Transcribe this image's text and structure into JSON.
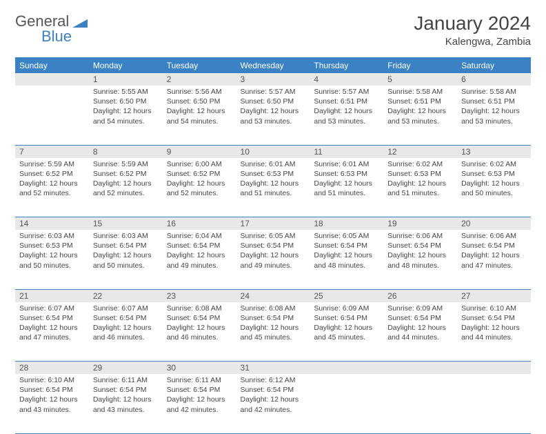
{
  "logo": {
    "word1": "General",
    "word2": "Blue",
    "shape_color": "#3b82c4"
  },
  "title": "January 2024",
  "location": "Kalengwa, Zambia",
  "colors": {
    "header_bg": "#3b82c4",
    "header_text": "#ffffff",
    "daynum_bg": "#e8e8e8",
    "daynum_text": "#555555",
    "body_text": "#444444",
    "rule": "#3b82c4",
    "page_bg": "#ffffff"
  },
  "typography": {
    "title_size": 28,
    "location_size": 15,
    "header_size": 12,
    "cell_size": 10.5
  },
  "weekdays": [
    "Sunday",
    "Monday",
    "Tuesday",
    "Wednesday",
    "Thursday",
    "Friday",
    "Saturday"
  ],
  "weeks": [
    [
      null,
      {
        "n": "1",
        "sr": "5:55 AM",
        "ss": "6:50 PM",
        "dl": "12 hours and 54 minutes."
      },
      {
        "n": "2",
        "sr": "5:56 AM",
        "ss": "6:50 PM",
        "dl": "12 hours and 54 minutes."
      },
      {
        "n": "3",
        "sr": "5:57 AM",
        "ss": "6:50 PM",
        "dl": "12 hours and 53 minutes."
      },
      {
        "n": "4",
        "sr": "5:57 AM",
        "ss": "6:51 PM",
        "dl": "12 hours and 53 minutes."
      },
      {
        "n": "5",
        "sr": "5:58 AM",
        "ss": "6:51 PM",
        "dl": "12 hours and 53 minutes."
      },
      {
        "n": "6",
        "sr": "5:58 AM",
        "ss": "6:51 PM",
        "dl": "12 hours and 53 minutes."
      }
    ],
    [
      {
        "n": "7",
        "sr": "5:59 AM",
        "ss": "6:52 PM",
        "dl": "12 hours and 52 minutes."
      },
      {
        "n": "8",
        "sr": "5:59 AM",
        "ss": "6:52 PM",
        "dl": "12 hours and 52 minutes."
      },
      {
        "n": "9",
        "sr": "6:00 AM",
        "ss": "6:52 PM",
        "dl": "12 hours and 52 minutes."
      },
      {
        "n": "10",
        "sr": "6:01 AM",
        "ss": "6:53 PM",
        "dl": "12 hours and 51 minutes."
      },
      {
        "n": "11",
        "sr": "6:01 AM",
        "ss": "6:53 PM",
        "dl": "12 hours and 51 minutes."
      },
      {
        "n": "12",
        "sr": "6:02 AM",
        "ss": "6:53 PM",
        "dl": "12 hours and 51 minutes."
      },
      {
        "n": "13",
        "sr": "6:02 AM",
        "ss": "6:53 PM",
        "dl": "12 hours and 50 minutes."
      }
    ],
    [
      {
        "n": "14",
        "sr": "6:03 AM",
        "ss": "6:53 PM",
        "dl": "12 hours and 50 minutes."
      },
      {
        "n": "15",
        "sr": "6:03 AM",
        "ss": "6:54 PM",
        "dl": "12 hours and 50 minutes."
      },
      {
        "n": "16",
        "sr": "6:04 AM",
        "ss": "6:54 PM",
        "dl": "12 hours and 49 minutes."
      },
      {
        "n": "17",
        "sr": "6:05 AM",
        "ss": "6:54 PM",
        "dl": "12 hours and 49 minutes."
      },
      {
        "n": "18",
        "sr": "6:05 AM",
        "ss": "6:54 PM",
        "dl": "12 hours and 48 minutes."
      },
      {
        "n": "19",
        "sr": "6:06 AM",
        "ss": "6:54 PM",
        "dl": "12 hours and 48 minutes."
      },
      {
        "n": "20",
        "sr": "6:06 AM",
        "ss": "6:54 PM",
        "dl": "12 hours and 47 minutes."
      }
    ],
    [
      {
        "n": "21",
        "sr": "6:07 AM",
        "ss": "6:54 PM",
        "dl": "12 hours and 47 minutes."
      },
      {
        "n": "22",
        "sr": "6:07 AM",
        "ss": "6:54 PM",
        "dl": "12 hours and 46 minutes."
      },
      {
        "n": "23",
        "sr": "6:08 AM",
        "ss": "6:54 PM",
        "dl": "12 hours and 46 minutes."
      },
      {
        "n": "24",
        "sr": "6:08 AM",
        "ss": "6:54 PM",
        "dl": "12 hours and 45 minutes."
      },
      {
        "n": "25",
        "sr": "6:09 AM",
        "ss": "6:54 PM",
        "dl": "12 hours and 45 minutes."
      },
      {
        "n": "26",
        "sr": "6:09 AM",
        "ss": "6:54 PM",
        "dl": "12 hours and 44 minutes."
      },
      {
        "n": "27",
        "sr": "6:10 AM",
        "ss": "6:54 PM",
        "dl": "12 hours and 44 minutes."
      }
    ],
    [
      {
        "n": "28",
        "sr": "6:10 AM",
        "ss": "6:54 PM",
        "dl": "12 hours and 43 minutes."
      },
      {
        "n": "29",
        "sr": "6:11 AM",
        "ss": "6:54 PM",
        "dl": "12 hours and 43 minutes."
      },
      {
        "n": "30",
        "sr": "6:11 AM",
        "ss": "6:54 PM",
        "dl": "12 hours and 42 minutes."
      },
      {
        "n": "31",
        "sr": "6:12 AM",
        "ss": "6:54 PM",
        "dl": "12 hours and 42 minutes."
      },
      null,
      null,
      null
    ]
  ],
  "labels": {
    "sunrise": "Sunrise:",
    "sunset": "Sunset:",
    "daylight": "Daylight:"
  }
}
